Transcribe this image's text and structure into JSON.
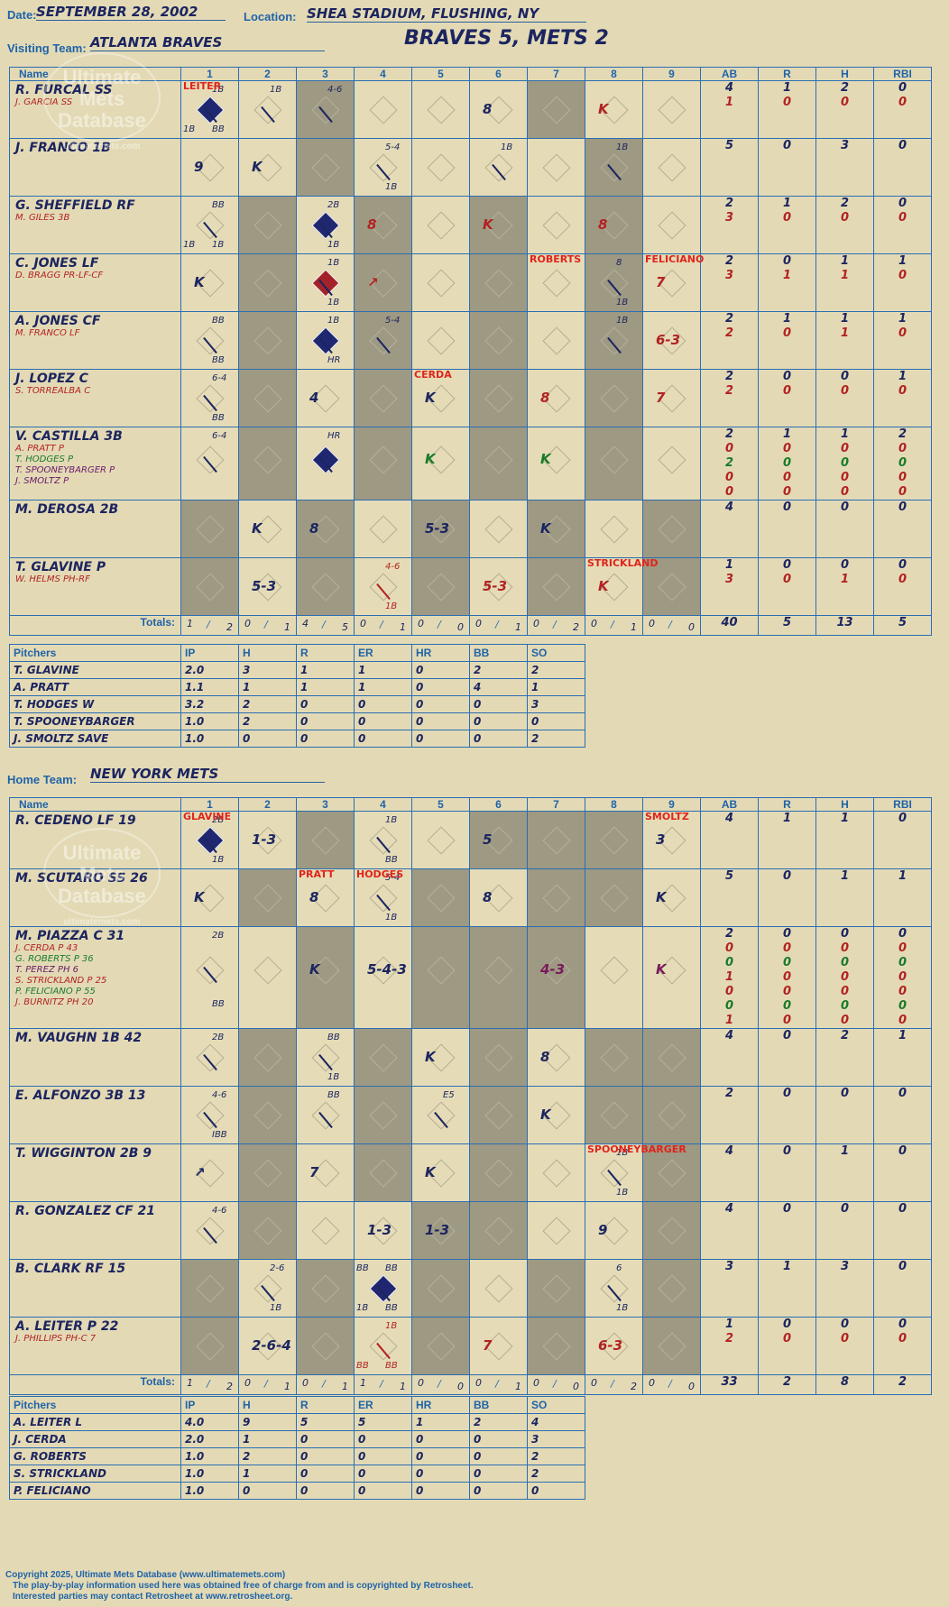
{
  "header": {
    "date_label": "Date:",
    "date": "SEPTEMBER 28, 2002",
    "location_label": "Location:",
    "location": "SHEA STADIUM, FLUSHING, NY",
    "visiting_label": "Visiting Team:",
    "visiting_team": "ATLANTA BRAVES",
    "headline": "BRAVES 5, METS 2",
    "home_label": "Home Team:",
    "home_team": "NEW YORK METS"
  },
  "columns": [
    "Name",
    "1",
    "2",
    "3",
    "4",
    "5",
    "6",
    "7",
    "8",
    "9",
    "AB",
    "R",
    "H",
    "RBI"
  ],
  "watermark": [
    "Ultimate",
    "Mets",
    "Database",
    "ultimatemets.com"
  ],
  "visitors": {
    "rows": [
      {
        "name": "R. FURCAL SS",
        "subs": [
          {
            "t": "J. GARCIA SS",
            "c": "r"
          }
        ],
        "ab": [
          "4",
          "1"
        ],
        "r": [
          "1",
          "0"
        ],
        "h": [
          "2",
          "0"
        ],
        "rbi": [
          "0",
          "0"
        ]
      },
      {
        "name": "J. FRANCO 1B",
        "subs": [],
        "ab": [
          "5"
        ],
        "r": [
          "0"
        ],
        "h": [
          "3"
        ],
        "rbi": [
          "0"
        ]
      },
      {
        "name": "G. SHEFFIELD RF",
        "subs": [
          {
            "t": "M. GILES 3B",
            "c": "r"
          }
        ],
        "ab": [
          "2",
          "3"
        ],
        "r": [
          "1",
          "0"
        ],
        "h": [
          "2",
          "0"
        ],
        "rbi": [
          "0",
          "0"
        ]
      },
      {
        "name": "C. JONES LF",
        "subs": [
          {
            "t": "D. BRAGG PR-LF-CF",
            "c": "r"
          }
        ],
        "ab": [
          "2",
          "3"
        ],
        "r": [
          "0",
          "1"
        ],
        "h": [
          "1",
          "1"
        ],
        "rbi": [
          "1",
          "0"
        ]
      },
      {
        "name": "A. JONES CF",
        "subs": [
          {
            "t": "M. FRANCO LF",
            "c": "r"
          }
        ],
        "ab": [
          "2",
          "2"
        ],
        "r": [
          "1",
          "0"
        ],
        "h": [
          "1",
          "1"
        ],
        "rbi": [
          "1",
          "0"
        ]
      },
      {
        "name": "J. LOPEZ C",
        "subs": [
          {
            "t": "S. TORREALBA C",
            "c": "r"
          }
        ],
        "ab": [
          "2",
          "2"
        ],
        "r": [
          "0",
          "0"
        ],
        "h": [
          "0",
          "0"
        ],
        "rbi": [
          "1",
          "0"
        ]
      },
      {
        "name": "V. CASTILLA 3B",
        "subs": [
          {
            "t": "A. PRATT P",
            "c": "r"
          },
          {
            "t": "T. HODGES P",
            "c": "g"
          },
          {
            "t": "T. SPOONEYBARGER P",
            "c": "p"
          },
          {
            "t": "J. SMOLTZ P",
            "c": "p"
          }
        ],
        "ab": [
          "2",
          "0",
          "2",
          "0",
          "0"
        ],
        "r": [
          "1",
          "0",
          "0",
          "0",
          "0"
        ],
        "h": [
          "1",
          "0",
          "0",
          "0",
          "0"
        ],
        "rbi": [
          "2",
          "0",
          "0",
          "0",
          "0"
        ]
      },
      {
        "name": "M. DEROSA 2B",
        "subs": [],
        "ab": [
          "4"
        ],
        "r": [
          "0"
        ],
        "h": [
          "0"
        ],
        "rbi": [
          "0"
        ]
      },
      {
        "name": "T. GLAVINE P",
        "subs": [
          {
            "t": "W. HELMS PH-RF",
            "c": "r"
          }
        ],
        "ab": [
          "1",
          "3"
        ],
        "r": [
          "0",
          "0"
        ],
        "h": [
          "0",
          "1"
        ],
        "rbi": [
          "0",
          "0"
        ]
      }
    ],
    "totals_label": "Totals:",
    "innings_rh": [
      [
        "1",
        "2"
      ],
      [
        "0",
        "1"
      ],
      [
        "4",
        "5"
      ],
      [
        "0",
        "1"
      ],
      [
        "0",
        "0"
      ],
      [
        "0",
        "1"
      ],
      [
        "0",
        "2"
      ],
      [
        "0",
        "1"
      ],
      [
        "0",
        "0"
      ]
    ],
    "totals": {
      "ab": "40",
      "r": "5",
      "h": "13",
      "rbi": "5"
    },
    "plays": [
      {
        "row": 0,
        "inn": 0,
        "text": "",
        "diamond": "filled",
        "notes": [
          "1B",
          "BB",
          "1B"
        ]
      },
      {
        "row": 0,
        "inn": 1,
        "text": "",
        "notes": [
          "1B"
        ]
      },
      {
        "row": 0,
        "inn": 2,
        "text": "",
        "notes": [
          "4-6"
        ]
      },
      {
        "row": 0,
        "inn": 5,
        "text": "8"
      },
      {
        "row": 0,
        "inn": 7,
        "text": "K",
        "color": "r"
      },
      {
        "row": 1,
        "inn": 0,
        "text": "9"
      },
      {
        "row": 1,
        "inn": 1,
        "text": "K"
      },
      {
        "row": 1,
        "inn": 3,
        "text": "",
        "notes": [
          "5-4",
          "1B"
        ]
      },
      {
        "row": 1,
        "inn": 5,
        "text": "",
        "notes": [
          "1B"
        ]
      },
      {
        "row": 1,
        "inn": 7,
        "text": "",
        "notes": [
          "1B"
        ]
      },
      {
        "row": 2,
        "inn": 0,
        "text": "",
        "notes": [
          "BB",
          "1B",
          "1B"
        ]
      },
      {
        "row": 2,
        "inn": 2,
        "text": "",
        "diamond": "filled",
        "notes": [
          "2B",
          "1B"
        ]
      },
      {
        "row": 2,
        "inn": 3,
        "text": "8",
        "color": "r"
      },
      {
        "row": 2,
        "inn": 5,
        "text": "K",
        "color": "r"
      },
      {
        "row": 2,
        "inn": 7,
        "text": "8",
        "color": "r"
      },
      {
        "row": 3,
        "inn": 0,
        "text": "K"
      },
      {
        "row": 3,
        "inn": 2,
        "text": "",
        "diamond": "red",
        "notes": [
          "1B",
          "1B"
        ]
      },
      {
        "row": 3,
        "inn": 3,
        "text": "↗",
        "color": "r"
      },
      {
        "row": 3,
        "inn": 7,
        "text": "",
        "notes": [
          "8",
          "1B"
        ]
      },
      {
        "row": 3,
        "inn": 8,
        "text": "7",
        "color": "r"
      },
      {
        "row": 4,
        "inn": 0,
        "text": "",
        "notes": [
          "BB",
          "BB"
        ]
      },
      {
        "row": 4,
        "inn": 2,
        "text": "",
        "diamond": "filled",
        "notes": [
          "1B",
          "HR"
        ]
      },
      {
        "row": 4,
        "inn": 3,
        "text": "",
        "notes": [
          "5-4"
        ]
      },
      {
        "row": 4,
        "inn": 7,
        "text": "",
        "notes": [
          "1B"
        ]
      },
      {
        "row": 4,
        "inn": 8,
        "text": "6-3",
        "color": "r"
      },
      {
        "row": 5,
        "inn": 0,
        "text": "",
        "notes": [
          "6-4",
          "BB"
        ]
      },
      {
        "row": 5,
        "inn": 2,
        "text": "4"
      },
      {
        "row": 5,
        "inn": 4,
        "text": "K"
      },
      {
        "row": 5,
        "inn": 6,
        "text": "8",
        "color": "r"
      },
      {
        "row": 5,
        "inn": 8,
        "text": "7",
        "color": "r"
      },
      {
        "row": 6,
        "inn": 0,
        "text": "",
        "notes": [
          "6-4"
        ]
      },
      {
        "row": 6,
        "inn": 2,
        "text": "",
        "diamond": "filled",
        "notes": [
          "HR"
        ]
      },
      {
        "row": 6,
        "inn": 4,
        "text": "K",
        "color": "g"
      },
      {
        "row": 6,
        "inn": 6,
        "text": "K",
        "color": "g"
      },
      {
        "row": 7,
        "inn": 1,
        "text": "K"
      },
      {
        "row": 7,
        "inn": 2,
        "text": "8"
      },
      {
        "row": 7,
        "inn": 4,
        "text": "5-3"
      },
      {
        "row": 7,
        "inn": 6,
        "text": "K"
      },
      {
        "row": 8,
        "inn": 1,
        "text": "5-3"
      },
      {
        "row": 8,
        "inn": 3,
        "text": "",
        "notes": [
          "4-6",
          "1B"
        ],
        "color": "r"
      },
      {
        "row": 8,
        "inn": 5,
        "text": "5-3",
        "color": "r"
      },
      {
        "row": 8,
        "inn": 7,
        "text": "K",
        "color": "r"
      }
    ],
    "pitcher_labels": [
      {
        "row": 0,
        "inn": 0,
        "text": "LEITER"
      },
      {
        "row": 3,
        "inn": 6,
        "text": "ROBERTS"
      },
      {
        "row": 3,
        "inn": 8,
        "text": "FELICIANO"
      },
      {
        "row": 5,
        "inn": 4,
        "text": "CERDA"
      },
      {
        "row": 8,
        "inn": 7,
        "text": "STRICKLAND"
      }
    ]
  },
  "visitor_pitching": {
    "headers": [
      "Pitchers",
      "IP",
      "H",
      "R",
      "ER",
      "HR",
      "BB",
      "SO"
    ],
    "rows": [
      [
        "T. GLAVINE",
        "2.0",
        "3",
        "1",
        "1",
        "0",
        "2",
        "2"
      ],
      [
        "A. PRATT",
        "1.1",
        "1",
        "1",
        "1",
        "0",
        "4",
        "1"
      ],
      [
        "T. HODGES  W",
        "3.2",
        "2",
        "0",
        "0",
        "0",
        "0",
        "3"
      ],
      [
        "T. SPOONEYBARGER",
        "1.0",
        "2",
        "0",
        "0",
        "0",
        "0",
        "0"
      ],
      [
        "J. SMOLTZ  SAVE",
        "1.0",
        "0",
        "0",
        "0",
        "0",
        "0",
        "2"
      ]
    ]
  },
  "home": {
    "rows": [
      {
        "name": "R. CEDENO LF  19",
        "subs": [],
        "ab": [
          "4"
        ],
        "r": [
          "1"
        ],
        "h": [
          "1"
        ],
        "rbi": [
          "0"
        ]
      },
      {
        "name": "M. SCUTARO SS  26",
        "subs": [],
        "ab": [
          "5"
        ],
        "r": [
          "0"
        ],
        "h": [
          "1"
        ],
        "rbi": [
          "1"
        ]
      },
      {
        "name": "M. PIAZZA C  31",
        "subs": [
          {
            "t": "J. CERDA P  43",
            "c": "r"
          },
          {
            "t": "G. ROBERTS P  36",
            "c": "g"
          },
          {
            "t": "T. PEREZ PH  6",
            "c": "p"
          },
          {
            "t": "S. STRICKLAND P  25",
            "c": "r"
          },
          {
            "t": "P. FELICIANO P  55",
            "c": "g"
          },
          {
            "t": "J. BURNITZ PH  20",
            "c": "r"
          }
        ],
        "ab": [
          "2",
          "0",
          "0",
          "1",
          "0",
          "0",
          "1"
        ],
        "r": [
          "0",
          "0",
          "0",
          "0",
          "0",
          "0",
          "0"
        ],
        "h": [
          "0",
          "0",
          "0",
          "0",
          "0",
          "0",
          "0"
        ],
        "rbi": [
          "0",
          "0",
          "0",
          "0",
          "0",
          "0",
          "0"
        ]
      },
      {
        "name": "M. VAUGHN 1B  42",
        "subs": [],
        "ab": [
          "4"
        ],
        "r": [
          "0"
        ],
        "h": [
          "2"
        ],
        "rbi": [
          "1"
        ]
      },
      {
        "name": "E. ALFONZO 3B  13",
        "subs": [],
        "ab": [
          "2"
        ],
        "r": [
          "0"
        ],
        "h": [
          "0"
        ],
        "rbi": [
          "0"
        ]
      },
      {
        "name": "T. WIGGINTON 2B  9",
        "subs": [],
        "ab": [
          "4"
        ],
        "r": [
          "0"
        ],
        "h": [
          "1"
        ],
        "rbi": [
          "0"
        ]
      },
      {
        "name": "R. GONZALEZ CF  21",
        "subs": [],
        "ab": [
          "4"
        ],
        "r": [
          "0"
        ],
        "h": [
          "0"
        ],
        "rbi": [
          "0"
        ]
      },
      {
        "name": "B. CLARK RF  15",
        "subs": [],
        "ab": [
          "3"
        ],
        "r": [
          "1"
        ],
        "h": [
          "3"
        ],
        "rbi": [
          "0"
        ]
      },
      {
        "name": "A. LEITER P  22",
        "subs": [
          {
            "t": "J. PHILLIPS PH-C  7",
            "c": "r"
          }
        ],
        "ab": [
          "1",
          "2"
        ],
        "r": [
          "0",
          "0"
        ],
        "h": [
          "0",
          "0"
        ],
        "rbi": [
          "0",
          "0"
        ]
      }
    ],
    "totals_label": "Totals:",
    "innings_rh": [
      [
        "1",
        "2"
      ],
      [
        "0",
        "1"
      ],
      [
        "0",
        "1"
      ],
      [
        "1",
        "1"
      ],
      [
        "0",
        "0"
      ],
      [
        "0",
        "1"
      ],
      [
        "0",
        "0"
      ],
      [
        "0",
        "2"
      ],
      [
        "0",
        "0"
      ]
    ],
    "totals": {
      "ab": "33",
      "r": "2",
      "h": "8",
      "rbi": "2"
    },
    "plays": [
      {
        "row": 0,
        "inn": 0,
        "text": "",
        "diamond": "filled",
        "notes": [
          "2B",
          "1B"
        ]
      },
      {
        "row": 0,
        "inn": 1,
        "text": "1-3"
      },
      {
        "row": 0,
        "inn": 3,
        "text": "",
        "notes": [
          "1B",
          "BB"
        ]
      },
      {
        "row": 0,
        "inn": 5,
        "text": "5"
      },
      {
        "row": 0,
        "inn": 8,
        "text": "3"
      },
      {
        "row": 1,
        "inn": 0,
        "text": "K"
      },
      {
        "row": 1,
        "inn": 2,
        "text": "8"
      },
      {
        "row": 1,
        "inn": 3,
        "text": "",
        "notes": [
          "5-4",
          "1B"
        ]
      },
      {
        "row": 1,
        "inn": 5,
        "text": "8"
      },
      {
        "row": 1,
        "inn": 8,
        "text": "K"
      },
      {
        "row": 2,
        "inn": 0,
        "text": "",
        "notes": [
          "2B",
          "BB"
        ]
      },
      {
        "row": 2,
        "inn": 2,
        "text": "K"
      },
      {
        "row": 2,
        "inn": 3,
        "text": "5-4-3"
      },
      {
        "row": 2,
        "inn": 6,
        "text": "4-3",
        "color": "pu"
      },
      {
        "row": 2,
        "inn": 8,
        "text": "K",
        "color": "pu"
      },
      {
        "row": 3,
        "inn": 0,
        "text": "",
        "notes": [
          "2B"
        ]
      },
      {
        "row": 3,
        "inn": 2,
        "text": "",
        "notes": [
          "BB",
          "1B"
        ]
      },
      {
        "row": 3,
        "inn": 4,
        "text": "K"
      },
      {
        "row": 3,
        "inn": 6,
        "text": "8"
      },
      {
        "row": 4,
        "inn": 0,
        "text": "",
        "notes": [
          "4-6",
          "IBB"
        ]
      },
      {
        "row": 4,
        "inn": 2,
        "text": "",
        "notes": [
          "BB"
        ]
      },
      {
        "row": 4,
        "inn": 4,
        "text": "",
        "notes": [
          "E5"
        ]
      },
      {
        "row": 4,
        "inn": 6,
        "text": "K"
      },
      {
        "row": 5,
        "inn": 0,
        "text": "↗"
      },
      {
        "row": 5,
        "inn": 2,
        "text": "7"
      },
      {
        "row": 5,
        "inn": 4,
        "text": "K"
      },
      {
        "row": 5,
        "inn": 7,
        "text": "",
        "notes": [
          "1B",
          "1B"
        ]
      },
      {
        "row": 6,
        "inn": 0,
        "text": "",
        "notes": [
          "4-6"
        ]
      },
      {
        "row": 6,
        "inn": 3,
        "text": "1-3"
      },
      {
        "row": 6,
        "inn": 4,
        "text": "1-3"
      },
      {
        "row": 6,
        "inn": 7,
        "text": "9"
      },
      {
        "row": 7,
        "inn": 1,
        "text": "",
        "notes": [
          "2-6",
          "1B"
        ]
      },
      {
        "row": 7,
        "inn": 3,
        "text": "",
        "diamond": "filled",
        "notes": [
          "BB",
          "BB",
          "1B",
          "BB"
        ]
      },
      {
        "row": 7,
        "inn": 5,
        "text": ""
      },
      {
        "row": 7,
        "inn": 7,
        "text": "",
        "notes": [
          "6",
          "1B"
        ]
      },
      {
        "row": 8,
        "inn": 1,
        "text": "2-6-4"
      },
      {
        "row": 8,
        "inn": 3,
        "text": "",
        "color": "r",
        "notes": [
          "1B",
          "BB",
          "BB"
        ]
      },
      {
        "row": 8,
        "inn": 5,
        "text": "7",
        "color": "r"
      },
      {
        "row": 8,
        "inn": 7,
        "text": "6-3",
        "color": "r"
      }
    ],
    "pitcher_labels": [
      {
        "row": 0,
        "inn": 0,
        "text": "GLAVINE"
      },
      {
        "row": 0,
        "inn": 8,
        "text": "SMOLTZ"
      },
      {
        "row": 1,
        "inn": 2,
        "text": "PRATT"
      },
      {
        "row": 1,
        "inn": 3,
        "text": "HODGES"
      },
      {
        "row": 5,
        "inn": 7,
        "text": "SPOONEYBARGER"
      }
    ]
  },
  "home_pitching": {
    "headers": [
      "Pitchers",
      "IP",
      "H",
      "R",
      "ER",
      "HR",
      "BB",
      "SO"
    ],
    "rows": [
      [
        "A. LEITER  L",
        "4.0",
        "9",
        "5",
        "5",
        "1",
        "2",
        "4"
      ],
      [
        "J. CERDA",
        "2.0",
        "1",
        "0",
        "0",
        "0",
        "0",
        "3"
      ],
      [
        "G. ROBERTS",
        "1.0",
        "2",
        "0",
        "0",
        "0",
        "0",
        "2"
      ],
      [
        "S. STRICKLAND",
        "1.0",
        "1",
        "0",
        "0",
        "0",
        "0",
        "2"
      ],
      [
        "P. FELICIANO",
        "1.0",
        "0",
        "0",
        "0",
        "0",
        "0",
        "0"
      ]
    ]
  },
  "footer": {
    "line1": "Copyright 2025, Ultimate Mets Database (www.ultimatemets.com)",
    "line2": "The play-by-play information used here was obtained free of charge from and is copyrighted by Retrosheet.",
    "line3": "Interested parties may contact Retrosheet at www.retrosheet.org."
  },
  "colors": {
    "paper": "#e3dab5",
    "grid": "#2a6db3",
    "shade": "#9e9983",
    "ink": "#1c2560",
    "red": "#b22222",
    "green": "#1a7a2a",
    "label_red": "#e0241b"
  }
}
